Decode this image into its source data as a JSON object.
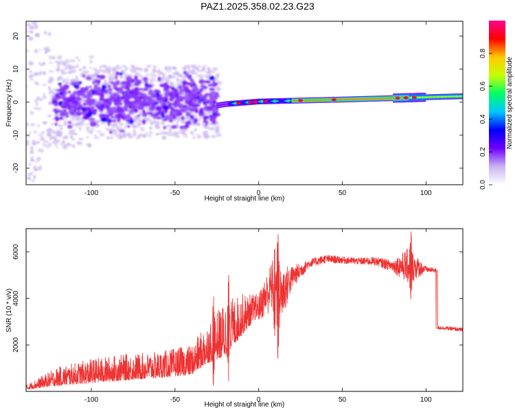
{
  "title": "PAZ1.2025.358.02.23.G23",
  "chart_data": [
    {
      "type": "heatmap",
      "name": "spectrogram",
      "xlabel": "Height of straight line (km)",
      "ylabel": "Frequency (Hz)",
      "xlim": [
        -139,
        122
      ],
      "ylim": [
        -25,
        24.5
      ],
      "xticks": [
        -100,
        -50,
        0,
        50,
        100
      ],
      "yticks": [
        -20,
        -10,
        0,
        10,
        20
      ],
      "colorbar": {
        "label": "Normalized spectral amplitude",
        "range": [
          0,
          1
        ],
        "ticks": [
          0.0,
          0.2,
          0.4,
          0.6,
          0.8
        ],
        "tick_labels": [
          "0.0",
          "0.2",
          "0.4",
          "0.6",
          "0.8"
        ],
        "colors": [
          "#ffffff",
          "#c8b4f0",
          "#6e00ff",
          "#0000ff",
          "#00c8ff",
          "#00ff64",
          "#c8ff00",
          "#ffc800",
          "#ff0000",
          "#ff0090"
        ]
      },
      "features": {
        "scattered_region_km": [
          -139,
          -25
        ],
        "scattered_frequency_spread_hz": [
          -12,
          12
        ],
        "curved_arc": {
          "from_km": -44,
          "to_km": -25,
          "from_hz": 9,
          "to_hz": -3
        },
        "tone_region_km": [
          -25,
          122
        ],
        "tone_frequency_hz": {
          "start": -1,
          "at_0km": 0.2,
          "at_50km": 0.8,
          "end": 1.8
        },
        "peak_amplitude_region_km": [
          20,
          90
        ]
      }
    },
    {
      "type": "line",
      "name": "snr",
      "xlabel": "Height of straight line (km)",
      "ylabel": "SNR (10 * v/v)",
      "xlim": [
        -139,
        122
      ],
      "ylim": [
        0,
        7000
      ],
      "xticks": [
        -100,
        -50,
        0,
        50,
        100
      ],
      "yticks": [
        2000,
        4000,
        6000
      ],
      "color": "#ee3333",
      "envelope": {
        "x": [
          -139,
          -120,
          -100,
          -80,
          -60,
          -40,
          -30,
          -20,
          -10,
          0,
          10,
          12,
          20,
          30,
          40,
          50,
          60,
          70,
          80,
          90,
          100,
          106,
          107,
          122
        ],
        "y": [
          150,
          550,
          750,
          900,
          1000,
          1200,
          1900,
          2400,
          3100,
          3600,
          4800,
          4000,
          4900,
          5500,
          5700,
          5650,
          5600,
          5600,
          5400,
          5400,
          5250,
          5200,
          2750,
          2650
        ],
        "noise": [
          120,
          500,
          650,
          700,
          700,
          800,
          1100,
          1500,
          1100,
          600,
          1200,
          1400,
          500,
          180,
          180,
          150,
          150,
          180,
          250,
          800,
          120,
          100,
          80,
          80
        ]
      },
      "spikes": [
        {
          "x": 11.5,
          "y_max": 7000,
          "y_min": 1350
        },
        {
          "x": 9.5,
          "y_max": 6200,
          "y_min": 2300
        },
        {
          "x": 91,
          "y_max": 6900,
          "y_min": 3850
        },
        {
          "x": -27,
          "y_max": 4300,
          "y_min": 150
        },
        {
          "x": -18,
          "y_max": 5100,
          "y_min": 400
        }
      ]
    }
  ]
}
